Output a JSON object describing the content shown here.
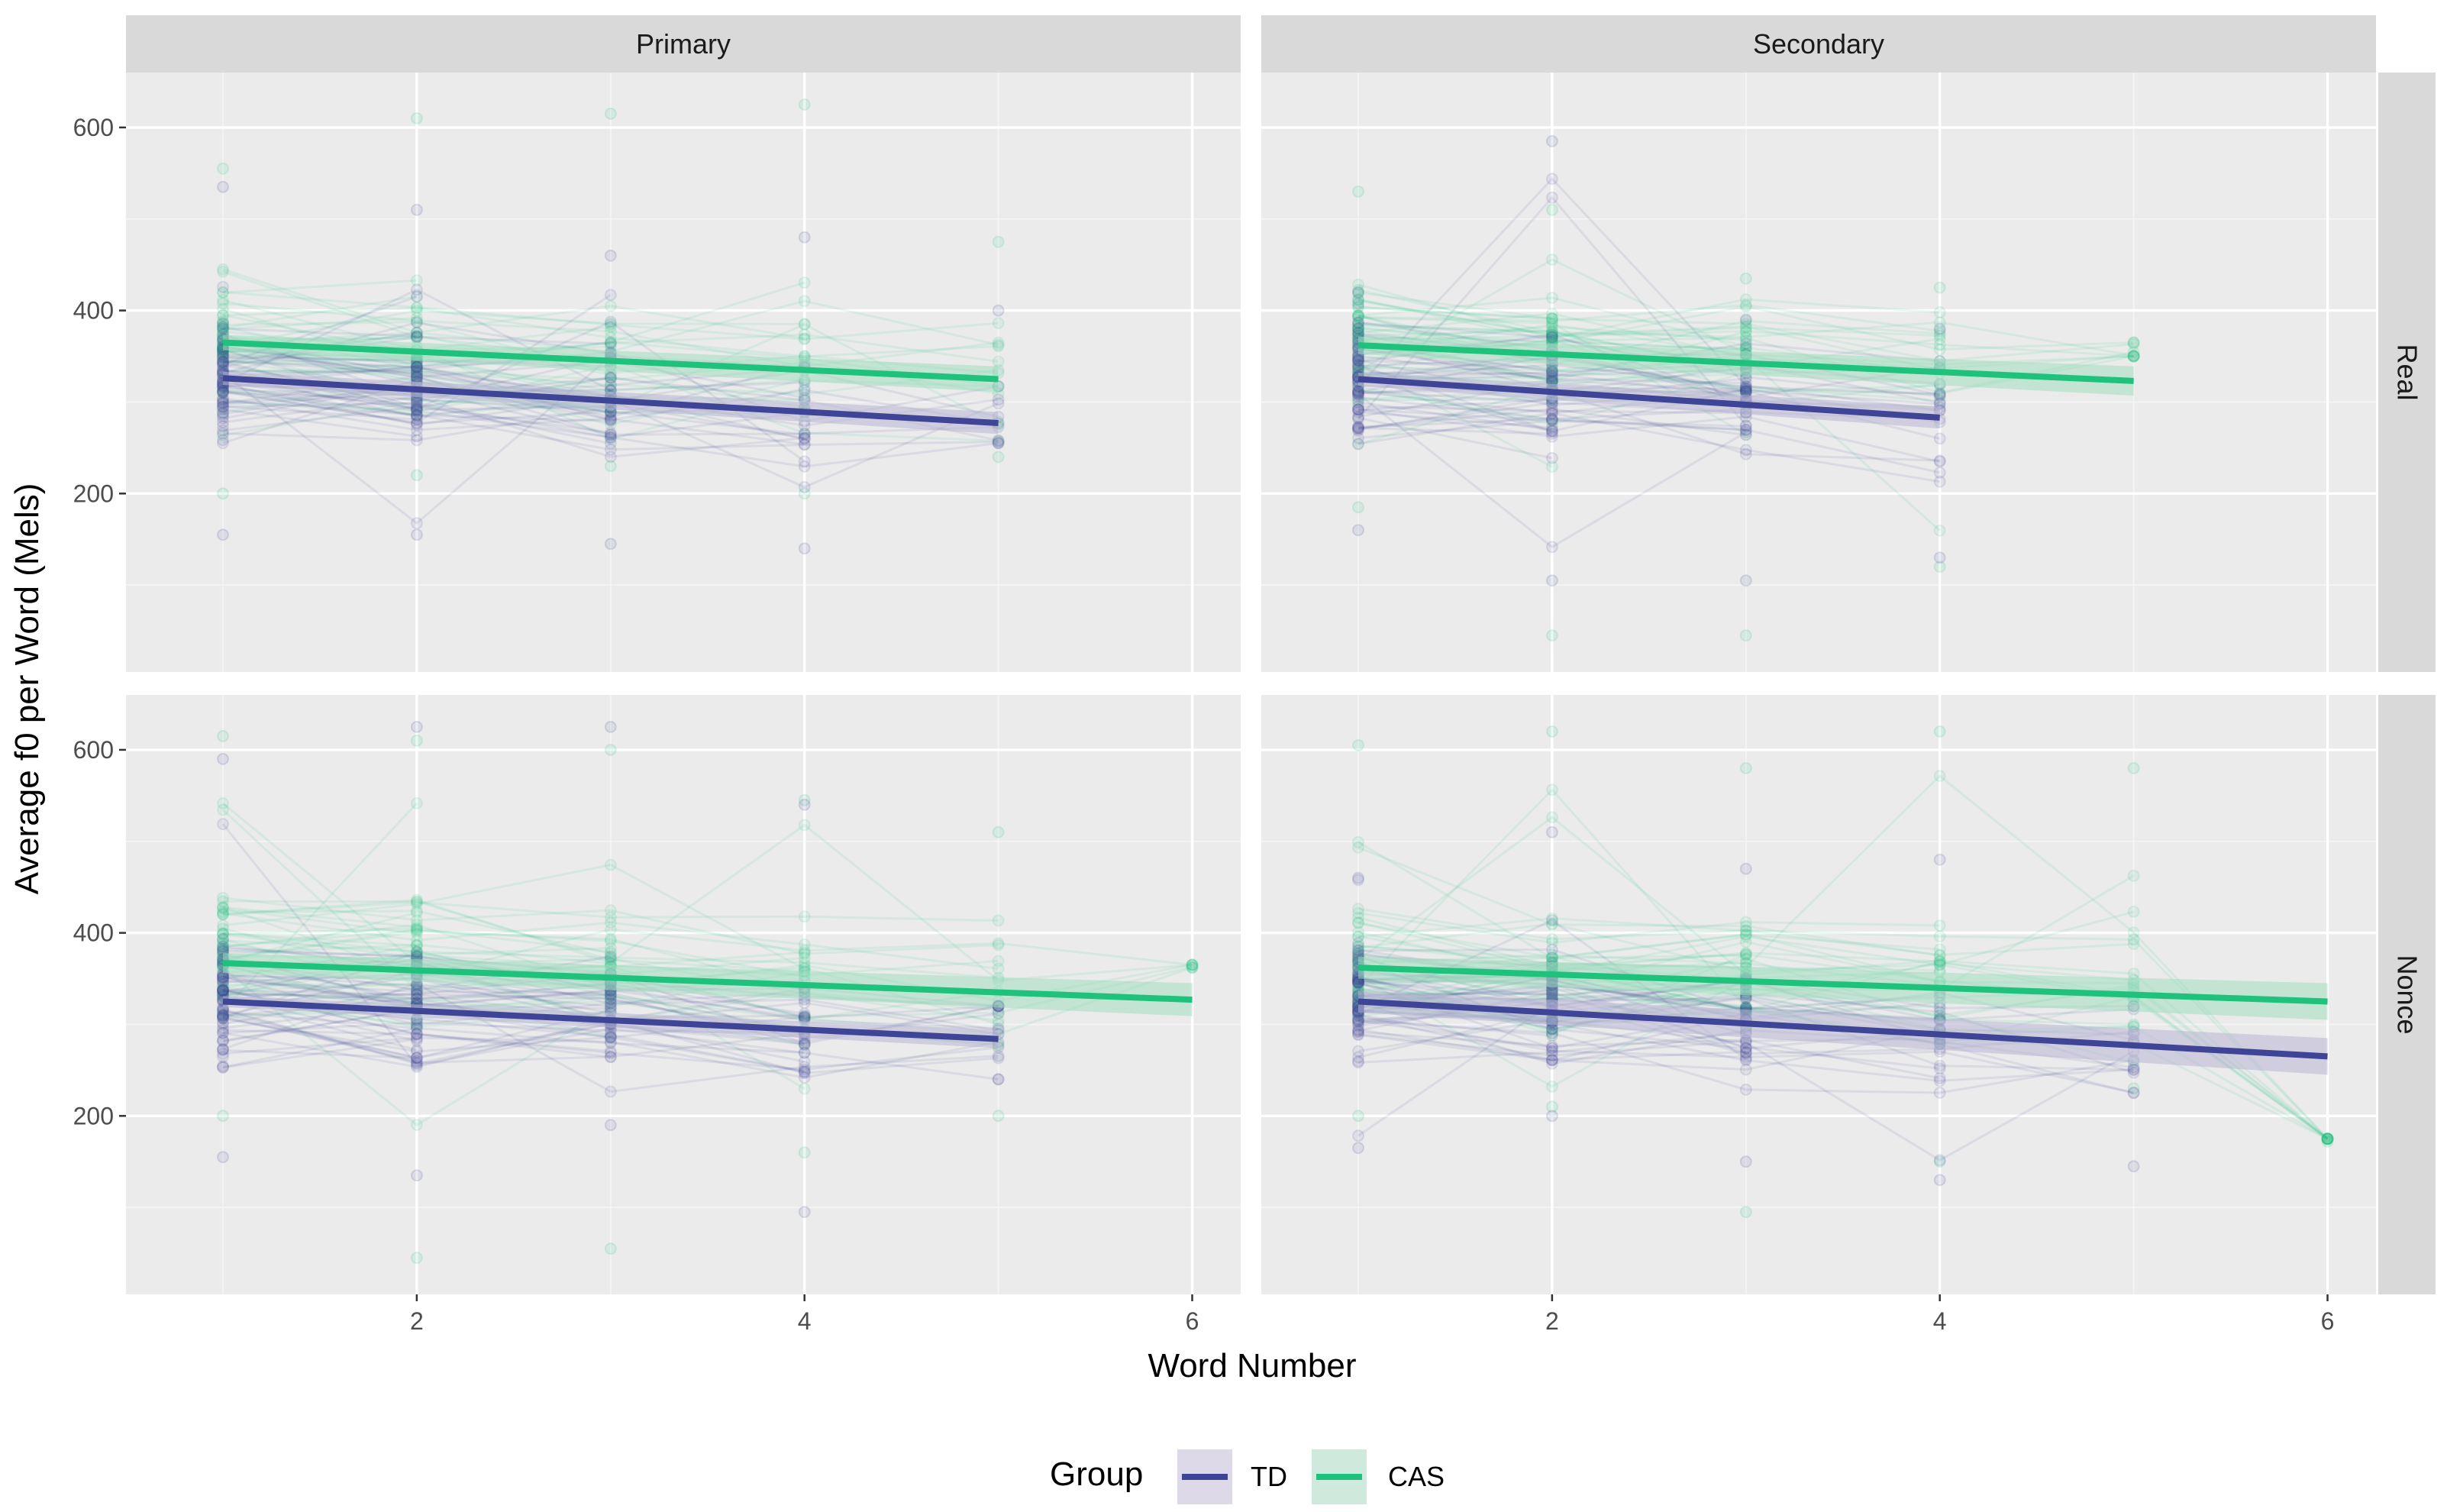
{
  "chart_data": {
    "type": "line",
    "xlabel": "Word Number",
    "ylabel": "Average f0 per Word (Mels)",
    "xlim": [
      0.5,
      6.25
    ],
    "ylim": [
      5,
      660
    ],
    "x_ticks": [
      2,
      4,
      6
    ],
    "y_ticks": [
      200,
      400,
      600
    ],
    "facet_cols": [
      "Primary",
      "Secondary"
    ],
    "facet_rows": [
      "Real",
      "Nonce"
    ],
    "legend": {
      "title": "Group",
      "position": "bottom",
      "entries": [
        {
          "label": "TD",
          "color": "#3f4596"
        },
        {
          "label": "CAS",
          "color": "#1ec27c"
        }
      ]
    },
    "panels": [
      {
        "col": "Primary",
        "row": "Real",
        "fits": [
          {
            "group": "TD",
            "x": [
              1,
              5
            ],
            "y": [
              326,
              277
            ],
            "se": 12
          },
          {
            "group": "CAS",
            "x": [
              1,
              5
            ],
            "y": [
              365,
              325
            ],
            "se": 14
          }
        ],
        "td_points": {
          "x": [
            1,
            2,
            3,
            4,
            5
          ],
          "y_min": [
            155,
            155,
            145,
            140,
            255
          ],
          "y_max": [
            535,
            510,
            460,
            480,
            400
          ]
        },
        "cas_points": {
          "x": [
            1,
            2,
            3,
            4,
            5
          ],
          "y_min": [
            200,
            220,
            230,
            200,
            240
          ],
          "y_max": [
            555,
            610,
            615,
            625,
            475
          ]
        }
      },
      {
        "col": "Secondary",
        "row": "Real",
        "fits": [
          {
            "group": "TD",
            "x": [
              1,
              4
            ],
            "y": [
              325,
              283
            ],
            "se": 12
          },
          {
            "group": "CAS",
            "x": [
              1,
              5
            ],
            "y": [
              362,
              323
            ],
            "se": 16
          }
        ],
        "td_points": {
          "x": [
            1,
            2,
            3,
            4
          ],
          "y_min": [
            160,
            105,
            105,
            130
          ],
          "y_max": [
            420,
            585,
            390,
            380
          ]
        },
        "cas_points": {
          "x": [
            1,
            2,
            3,
            4,
            5
          ],
          "y_min": [
            185,
            45,
            45,
            120,
            350
          ],
          "y_max": [
            530,
            510,
            435,
            425,
            365
          ]
        }
      },
      {
        "col": "Primary",
        "row": "Nonce",
        "fits": [
          {
            "group": "TD",
            "x": [
              1,
              5
            ],
            "y": [
              325,
              284
            ],
            "se": 10
          },
          {
            "group": "CAS",
            "x": [
              1,
              6
            ],
            "y": [
              367,
              327
            ],
            "se": 18
          }
        ],
        "td_points": {
          "x": [
            1,
            2,
            3,
            4,
            5
          ],
          "y_min": [
            155,
            135,
            190,
            95,
            240
          ],
          "y_max": [
            590,
            625,
            625,
            540,
            320
          ]
        },
        "cas_points": {
          "x": [
            1,
            2,
            3,
            4,
            5,
            6
          ],
          "y_min": [
            200,
            45,
            55,
            160,
            200,
            362
          ],
          "y_max": [
            615,
            610,
            600,
            545,
            510,
            365
          ]
        }
      },
      {
        "col": "Secondary",
        "row": "Nonce",
        "fits": [
          {
            "group": "TD",
            "x": [
              1,
              6
            ],
            "y": [
              325,
              265
            ],
            "se": 20
          },
          {
            "group": "CAS",
            "x": [
              1,
              6
            ],
            "y": [
              362,
              325
            ],
            "se": 20
          }
        ],
        "td_points": {
          "x": [
            1,
            2,
            3,
            4,
            5
          ],
          "y_min": [
            165,
            200,
            150,
            130,
            145
          ],
          "y_max": [
            460,
            510,
            470,
            480,
            320
          ]
        },
        "cas_points": {
          "x": [
            1,
            2,
            3,
            4,
            5,
            6
          ],
          "y_min": [
            200,
            210,
            95,
            150,
            230,
            172
          ],
          "y_max": [
            605,
            620,
            580,
            620,
            580,
            175
          ]
        }
      }
    ]
  }
}
